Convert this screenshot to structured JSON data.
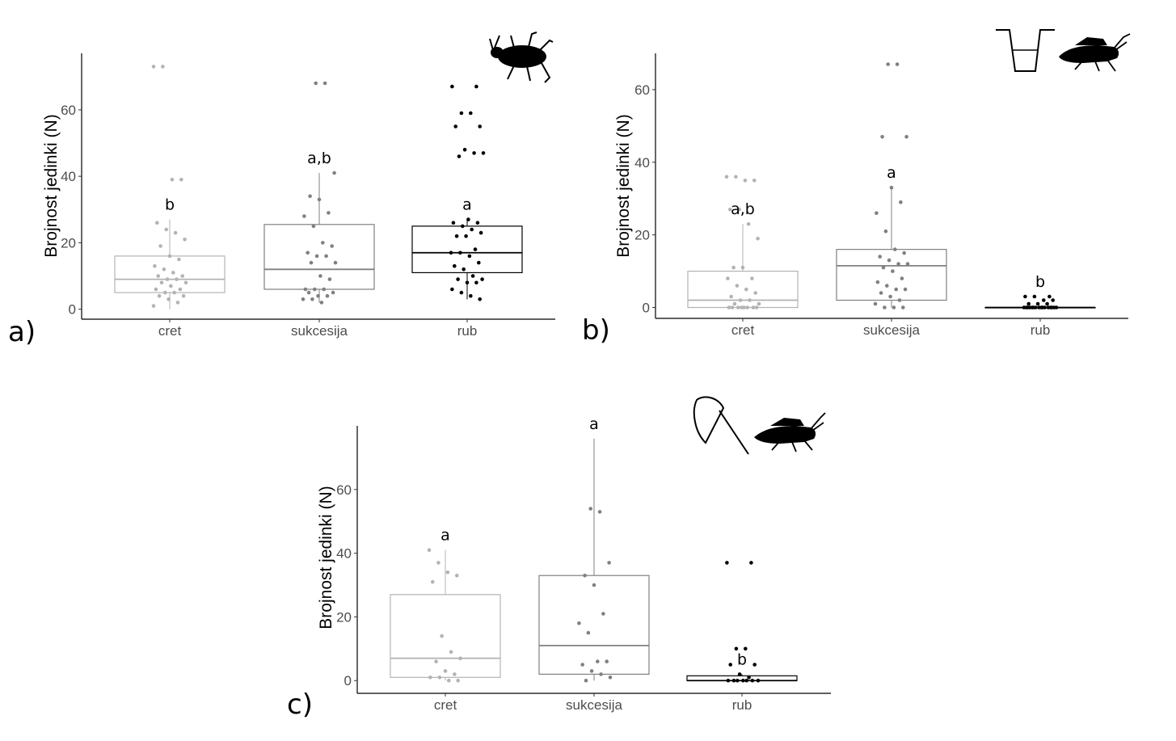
{
  "figure": {
    "panels": [
      {
        "panel_label": "a)",
        "ylabel": "Brojnost jedinki (N)",
        "icon": "ground-beetle-icon"
      },
      {
        "panel_label": "b)",
        "ylabel": "Brojnost jedinki (N)",
        "icon": "pitfall-trap-and-grasshopper-icon"
      },
      {
        "panel_label": "c)",
        "ylabel": "Brojnost jedinki (N)",
        "icon": "sweep-net-and-grasshopper-icon"
      }
    ]
  },
  "colors": {
    "cret": "#b3b3b3",
    "sukcesija": "#808080",
    "rub": "#000000",
    "axis": "#000000",
    "tick_label": "#4d4d4d"
  },
  "chart_data": [
    {
      "type": "box",
      "panel": "a)",
      "categories": [
        "cret",
        "sukcesija",
        "rub"
      ],
      "xlabel": "",
      "ylabel": "Brojnost jedinki (N)",
      "ylim": [
        -3,
        77
      ],
      "yticks": [
        0,
        20,
        40,
        60
      ],
      "grid": false,
      "boxes": [
        {
          "category": "cret",
          "q1": 5,
          "median": 9,
          "q3": 16,
          "lower": 0,
          "upper": 27,
          "letter": "b"
        },
        {
          "category": "sukcesija",
          "q1": 6,
          "median": 12,
          "q3": 25.5,
          "lower": 2,
          "upper": 41,
          "letter": "a,b"
        },
        {
          "category": "rub",
          "q1": 11,
          "median": 17,
          "q3": 25,
          "lower": 3,
          "upper": 27,
          "letter": "a"
        }
      ],
      "points": [
        {
          "category": "cret",
          "values": [
            73,
            73,
            39,
            39,
            26,
            24,
            23,
            21,
            19,
            16,
            15,
            13,
            12,
            11,
            10,
            10,
            9,
            9,
            8,
            8,
            7,
            6,
            6,
            5,
            5,
            4,
            4,
            3,
            2,
            1
          ]
        },
        {
          "category": "sukcesija",
          "values": [
            68,
            68,
            41,
            34,
            33,
            29,
            28,
            25,
            20,
            19,
            17,
            16,
            16,
            14,
            14,
            10,
            9,
            6,
            6,
            6,
            5,
            5,
            4,
            4,
            3,
            3,
            2
          ]
        },
        {
          "category": "rub",
          "values": [
            67,
            67,
            59,
            59,
            55,
            55,
            48,
            47,
            47,
            46,
            27,
            26,
            26,
            25,
            24,
            23,
            22,
            22,
            18,
            17,
            17,
            16,
            14,
            13,
            12,
            10,
            9,
            9,
            8,
            8,
            6,
            5,
            4,
            3
          ]
        }
      ]
    },
    {
      "type": "box",
      "panel": "b)",
      "categories": [
        "cret",
        "sukcesija",
        "rub"
      ],
      "xlabel": "",
      "ylabel": "Brojnost jedinki (N)",
      "ylim": [
        -3,
        70
      ],
      "yticks": [
        0,
        20,
        40,
        60
      ],
      "grid": false,
      "boxes": [
        {
          "category": "cret",
          "q1": 0,
          "median": 2,
          "q3": 10,
          "lower": 0,
          "upper": 23,
          "letter": "a,b"
        },
        {
          "category": "sukcesija",
          "q1": 2,
          "median": 11.5,
          "q3": 16,
          "lower": 0,
          "upper": 33,
          "letter": "a"
        },
        {
          "category": "rub",
          "q1": 0,
          "median": 0,
          "q3": 0,
          "lower": 0,
          "upper": 0,
          "letter": "b"
        }
      ],
      "points": [
        {
          "category": "cret",
          "values": [
            36,
            36,
            35,
            35,
            27,
            27,
            23,
            19,
            11,
            11,
            8,
            8,
            6,
            5,
            4,
            3,
            2,
            2,
            1,
            1,
            0,
            0,
            0,
            0,
            0,
            0,
            0,
            0
          ]
        },
        {
          "category": "sukcesija",
          "values": [
            67,
            67,
            47,
            47,
            33,
            29,
            26,
            21,
            16,
            15,
            14,
            13,
            12,
            12,
            11,
            10,
            8,
            7,
            6,
            5,
            5,
            4,
            3,
            2,
            1,
            0,
            0,
            0
          ]
        },
        {
          "category": "rub",
          "values": [
            3,
            3,
            3,
            2,
            2,
            1,
            1,
            1,
            0,
            0,
            0,
            0,
            0,
            0,
            0,
            0,
            0,
            0,
            0,
            0,
            0,
            0,
            0,
            0
          ]
        }
      ]
    },
    {
      "type": "box",
      "panel": "c)",
      "categories": [
        "cret",
        "sukcesija",
        "rub"
      ],
      "xlabel": "",
      "ylabel": "Brojnost jedinki (N)",
      "ylim": [
        -4,
        80
      ],
      "yticks": [
        0,
        20,
        40,
        60
      ],
      "grid": false,
      "boxes": [
        {
          "category": "cret",
          "q1": 1,
          "median": 7,
          "q3": 27,
          "lower": 0,
          "upper": 41,
          "letter": "a"
        },
        {
          "category": "sukcesija",
          "q1": 2,
          "median": 11,
          "q3": 33,
          "lower": 0,
          "upper": 76,
          "letter": "a"
        },
        {
          "category": "rub",
          "q1": 0,
          "median": 0,
          "q3": 1.5,
          "lower": 0,
          "upper": 2,
          "letter": "b"
        }
      ],
      "points": [
        {
          "category": "cret",
          "values": [
            41,
            37,
            34,
            33,
            31,
            14,
            9,
            7,
            6,
            3,
            2,
            1,
            1,
            0,
            0
          ]
        },
        {
          "category": "sukcesija",
          "values": [
            54,
            53,
            37,
            33,
            30,
            21,
            18,
            15,
            6,
            6,
            5,
            3,
            2,
            1,
            0
          ]
        },
        {
          "category": "rub",
          "values": [
            37,
            37,
            10,
            10,
            5,
            5,
            2,
            1,
            0,
            0,
            0,
            0,
            0,
            0,
            0
          ]
        }
      ]
    }
  ]
}
